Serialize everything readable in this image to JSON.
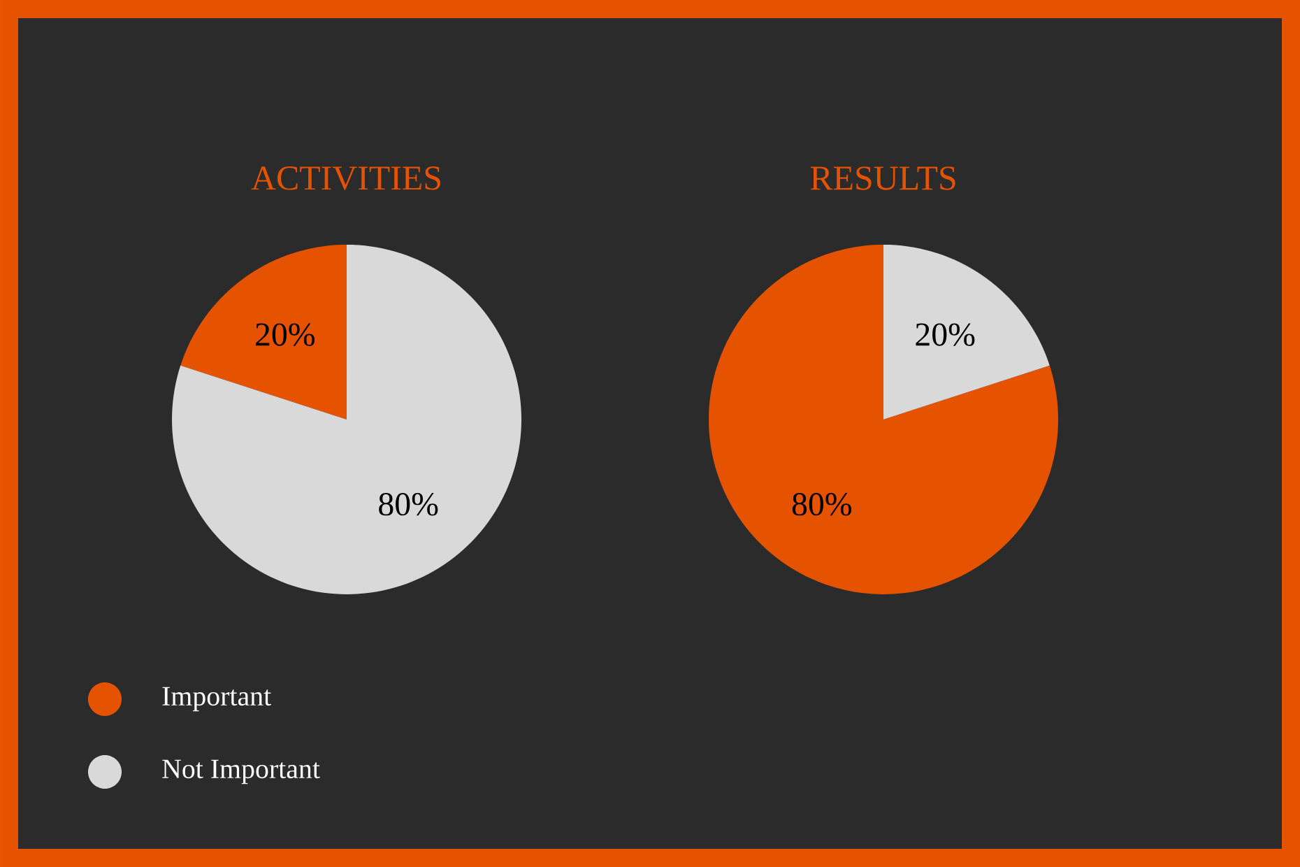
{
  "chart_data": [
    {
      "type": "pie",
      "title": "ACTIVITIES",
      "categories": [
        "Important",
        "Not Important"
      ],
      "values": [
        20,
        80
      ],
      "value_labels": [
        "20%",
        "80%"
      ],
      "colors": [
        "#e65300",
        "#d9d9d9"
      ],
      "legend": "bottom left"
    },
    {
      "type": "pie",
      "title": "RESULTS",
      "categories": [
        null,
        null
      ],
      "values": [
        80,
        20
      ],
      "value_labels": [
        "80%",
        "20%"
      ],
      "colors": [
        "#e65300",
        "#d9d9d9"
      ]
    }
  ]
}
